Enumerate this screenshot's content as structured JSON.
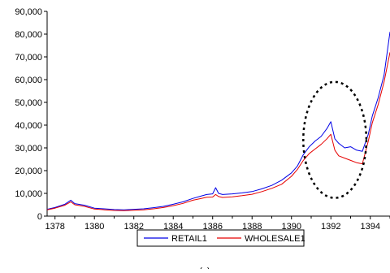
{
  "chart_data": {
    "type": "line",
    "title": "",
    "xlabel": "",
    "ylabel": "",
    "xlim": [
      1377.6,
      1395.0
    ],
    "ylim": [
      0,
      90000
    ],
    "x_ticks": [
      1378,
      1380,
      1382,
      1384,
      1386,
      1388,
      1390,
      1392,
      1394
    ],
    "y_ticks": [
      0,
      10000,
      20000,
      30000,
      40000,
      50000,
      60000,
      70000,
      80000,
      90000
    ],
    "x_tick_labels": [
      "1378",
      "1380",
      "1382",
      "1384",
      "1386",
      "1388",
      "1390",
      "1392",
      "1394"
    ],
    "y_tick_labels": [
      "0",
      "10,000",
      "20,000",
      "30,000",
      "40,000",
      "50,000",
      "60,000",
      "70,000",
      "80,000",
      "90,000"
    ],
    "grid": false,
    "legend_position": "bottom-center",
    "series": [
      {
        "name": "RETAIL1",
        "color": "#0000e6",
        "x": [
          1377.6,
          1378.0,
          1378.5,
          1378.8,
          1379.0,
          1379.5,
          1380.0,
          1380.5,
          1381.0,
          1381.5,
          1382.0,
          1382.5,
          1383.0,
          1383.5,
          1384.0,
          1384.5,
          1385.0,
          1385.4,
          1385.7,
          1386.0,
          1386.15,
          1386.3,
          1386.5,
          1387.0,
          1387.5,
          1388.0,
          1388.5,
          1389.0,
          1389.5,
          1390.0,
          1390.3,
          1390.6,
          1390.9,
          1391.2,
          1391.5,
          1391.8,
          1392.0,
          1392.2,
          1392.4,
          1392.7,
          1393.0,
          1393.3,
          1393.6,
          1393.9,
          1394.1,
          1394.4,
          1394.7,
          1395.0
        ],
        "y": [
          3000,
          3800,
          5200,
          7000,
          5500,
          4800,
          3500,
          3200,
          2900,
          2800,
          3000,
          3200,
          3700,
          4300,
          5200,
          6300,
          7800,
          8800,
          9500,
          9800,
          12500,
          10000,
          9500,
          9800,
          10200,
          10800,
          12000,
          13500,
          15800,
          19000,
          22000,
          27000,
          30500,
          33000,
          35000,
          38500,
          41500,
          34000,
          32000,
          30000,
          30500,
          29000,
          28500,
          36000,
          44000,
          52000,
          62000,
          81000
        ]
      },
      {
        "name": "WHOLESALE1",
        "color": "#e60000",
        "x": [
          1377.6,
          1378.0,
          1378.5,
          1378.8,
          1379.0,
          1379.5,
          1380.0,
          1380.5,
          1381.0,
          1381.5,
          1382.0,
          1382.5,
          1383.0,
          1383.5,
          1384.0,
          1384.5,
          1385.0,
          1385.4,
          1385.7,
          1386.0,
          1386.15,
          1386.3,
          1386.5,
          1387.0,
          1387.5,
          1388.0,
          1388.5,
          1389.0,
          1389.5,
          1390.0,
          1390.3,
          1390.6,
          1390.9,
          1391.2,
          1391.5,
          1391.8,
          1392.0,
          1392.2,
          1392.4,
          1392.7,
          1393.0,
          1393.3,
          1393.6,
          1393.9,
          1394.1,
          1394.4,
          1394.7,
          1395.0
        ],
        "y": [
          2800,
          3500,
          4800,
          6300,
          5000,
          4300,
          3100,
          2800,
          2500,
          2400,
          2600,
          2800,
          3200,
          3800,
          4600,
          5600,
          7000,
          7700,
          8300,
          8400,
          9500,
          8600,
          8200,
          8500,
          9000,
          9600,
          10800,
          12200,
          14000,
          17500,
          20500,
          24500,
          27500,
          29500,
          31500,
          34000,
          36000,
          29000,
          26500,
          25500,
          24500,
          23500,
          23000,
          33000,
          41000,
          49000,
          59000,
          72000
        ]
      }
    ],
    "annotation": {
      "shape": "dashed-ellipse",
      "x_range": [
        1390.6,
        1393.8
      ],
      "y_range": [
        8000,
        59000
      ]
    }
  },
  "caption": "(a)"
}
